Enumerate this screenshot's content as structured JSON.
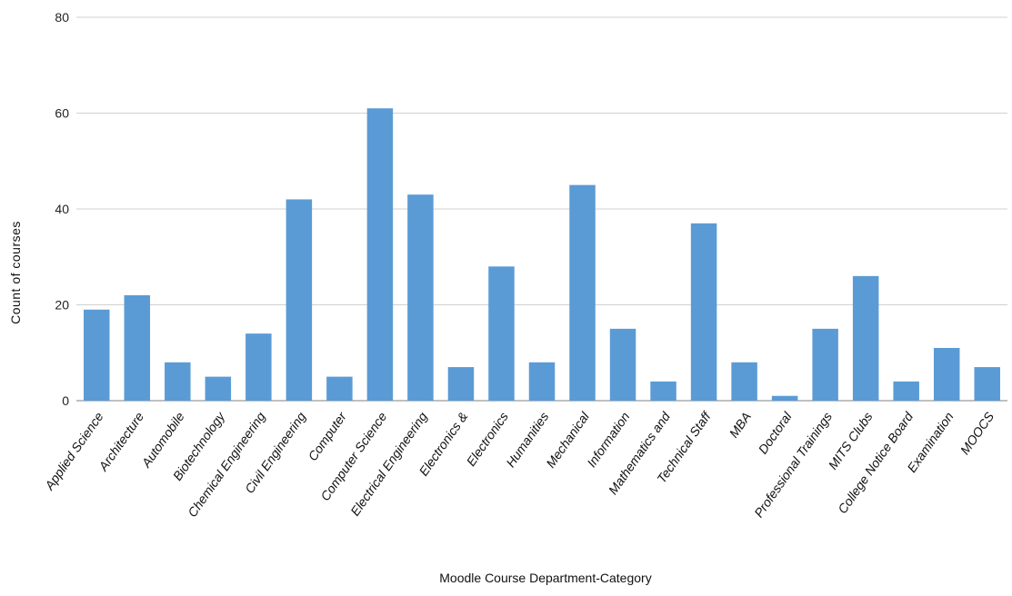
{
  "chart_data": {
    "type": "bar",
    "title": "",
    "xlabel": "Moodle Course Department-Category",
    "ylabel": "Count of courses",
    "ylim": [
      0,
      80
    ],
    "yticks": [
      0,
      20,
      40,
      60,
      80
    ],
    "grid": true,
    "bar_color": "#5b9bd5",
    "categories": [
      "Applied Science",
      "Architecture",
      "Automobile",
      "Biotechnology",
      "Chemical Engineering",
      "Civil Engineering",
      "Computer",
      "Computer Science",
      "Electrical Engineering",
      "Electronics &",
      "Electronics",
      "Humanities",
      "Mechanical",
      "Information",
      "Mathematics and",
      "Technical Staff",
      "MBA",
      "Doctoral",
      "Professional Trainings",
      "MITS Clubs",
      "College Notice Board",
      "Examination",
      "MOOCS"
    ],
    "values": [
      19,
      22,
      8,
      5,
      14,
      42,
      5,
      61,
      43,
      7,
      28,
      8,
      45,
      15,
      4,
      37,
      8,
      1,
      15,
      26,
      4,
      11,
      7
    ]
  }
}
